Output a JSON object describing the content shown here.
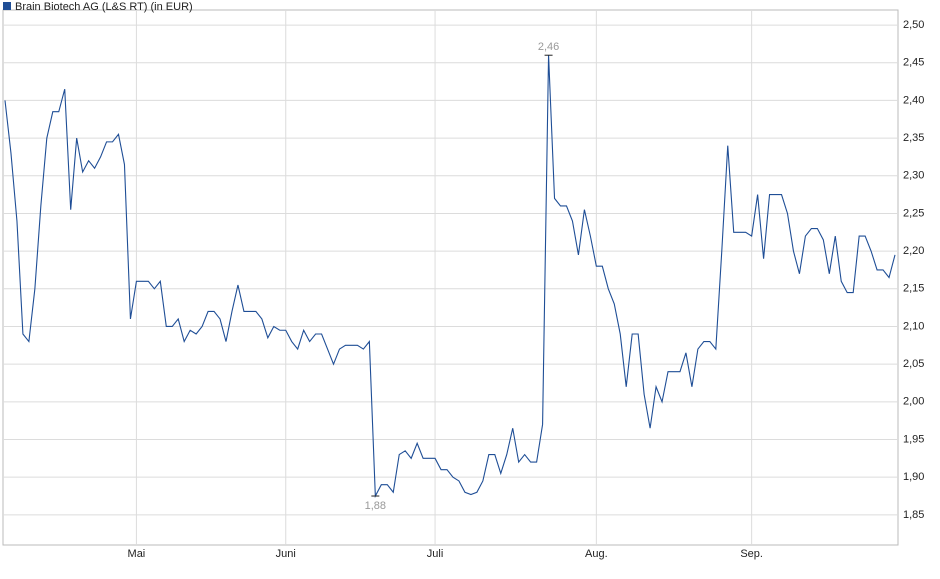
{
  "chart_data": {
    "type": "line",
    "categories": [
      null,
      null,
      null,
      null,
      null,
      null,
      null,
      null,
      null,
      null,
      null,
      null,
      null,
      null,
      null,
      null,
      null,
      null,
      null,
      null,
      null,
      null,
      "Mai",
      null,
      null,
      null,
      null,
      null,
      null,
      null,
      null,
      null,
      null,
      null,
      null,
      null,
      null,
      null,
      null,
      null,
      null,
      null,
      null,
      null,
      null,
      null,
      null,
      "Juni",
      null,
      null,
      null,
      null,
      null,
      null,
      null,
      null,
      null,
      null,
      null,
      null,
      null,
      null,
      null,
      null,
      null,
      null,
      null,
      null,
      null,
      null,
      null,
      null,
      "Juli",
      null,
      null,
      null,
      null,
      null,
      null,
      null,
      null,
      null,
      null,
      null,
      null,
      null,
      null,
      null,
      null,
      null,
      null,
      null,
      null,
      null,
      null,
      null,
      null,
      null,
      null,
      "Aug.",
      null,
      null,
      null,
      null,
      null,
      null,
      null,
      null,
      null,
      null,
      null,
      null,
      null,
      null,
      null,
      null,
      null,
      null,
      null,
      null,
      null,
      null,
      null,
      null,
      null,
      "Sep.",
      null,
      null,
      null,
      null,
      null,
      null,
      null,
      null,
      null,
      null,
      null,
      null,
      null,
      null,
      null,
      null,
      null,
      null,
      null,
      null,
      null,
      null,
      null,
      null
    ],
    "series": [
      {
        "name": "Brain Biotech AG (L&S RT) (in EUR)",
        "color": "#1f4e96",
        "values": [
          2.4,
          2.33,
          2.24,
          2.09,
          2.08,
          2.15,
          2.26,
          2.35,
          2.385,
          2.385,
          2.415,
          2.255,
          2.35,
          2.305,
          2.32,
          2.31,
          2.325,
          2.345,
          2.345,
          2.355,
          2.315,
          2.11,
          2.16,
          2.16,
          2.16,
          2.15,
          2.16,
          2.1,
          2.1,
          2.11,
          2.08,
          2.095,
          2.09,
          2.1,
          2.12,
          2.12,
          2.11,
          2.08,
          2.12,
          2.155,
          2.12,
          2.12,
          2.12,
          2.11,
          2.085,
          2.1,
          2.095,
          2.095,
          2.08,
          2.07,
          2.095,
          2.08,
          2.09,
          2.09,
          2.07,
          2.05,
          2.07,
          2.075,
          2.075,
          2.075,
          2.07,
          2.08,
          1.875,
          1.89,
          1.89,
          1.88,
          1.93,
          1.935,
          1.925,
          1.945,
          1.925,
          1.925,
          1.925,
          1.91,
          1.91,
          1.9,
          1.895,
          1.88,
          1.877,
          1.88,
          1.895,
          1.93,
          1.93,
          1.905,
          1.93,
          1.965,
          1.92,
          1.93,
          1.92,
          1.92,
          1.97,
          2.46,
          2.27,
          2.26,
          2.26,
          2.24,
          2.195,
          2.255,
          2.22,
          2.18,
          2.18,
          2.15,
          2.13,
          2.09,
          2.02,
          2.09,
          2.09,
          2.01,
          1.965,
          2.02,
          2.0,
          2.04,
          2.04,
          2.04,
          2.065,
          2.02,
          2.07,
          2.08,
          2.08,
          2.07,
          2.2,
          2.34,
          2.225,
          2.225,
          2.225,
          2.22,
          2.275,
          2.19,
          2.275,
          2.275,
          2.275,
          2.25,
          2.2,
          2.17,
          2.22,
          2.23,
          2.23,
          2.215,
          2.17,
          2.22,
          2.16,
          2.145,
          2.145,
          2.22,
          2.22,
          2.2,
          2.175,
          2.175,
          2.165,
          2.195
        ]
      }
    ],
    "annotations": [
      {
        "label": "2,46",
        "value": 2.46
      },
      {
        "label": "1,88",
        "value": 1.875
      }
    ],
    "ylim": [
      1.81,
      2.52
    ],
    "yticks": [
      {
        "value": 1.85,
        "label": "1,85"
      },
      {
        "value": 1.9,
        "label": "1,90"
      },
      {
        "value": 1.95,
        "label": "1,95"
      },
      {
        "value": 2.0,
        "label": "2,00"
      },
      {
        "value": 2.05,
        "label": "2,05"
      },
      {
        "value": 2.1,
        "label": "2,10"
      },
      {
        "value": 2.15,
        "label": "2,15"
      },
      {
        "value": 2.2,
        "label": "2,20"
      },
      {
        "value": 2.25,
        "label": "2,25"
      },
      {
        "value": 2.3,
        "label": "2,30"
      },
      {
        "value": 2.35,
        "label": "2,35"
      },
      {
        "value": 2.4,
        "label": "2,40"
      },
      {
        "value": 2.45,
        "label": "2,45"
      },
      {
        "value": 2.5,
        "label": "2,50"
      }
    ],
    "grid": true
  }
}
